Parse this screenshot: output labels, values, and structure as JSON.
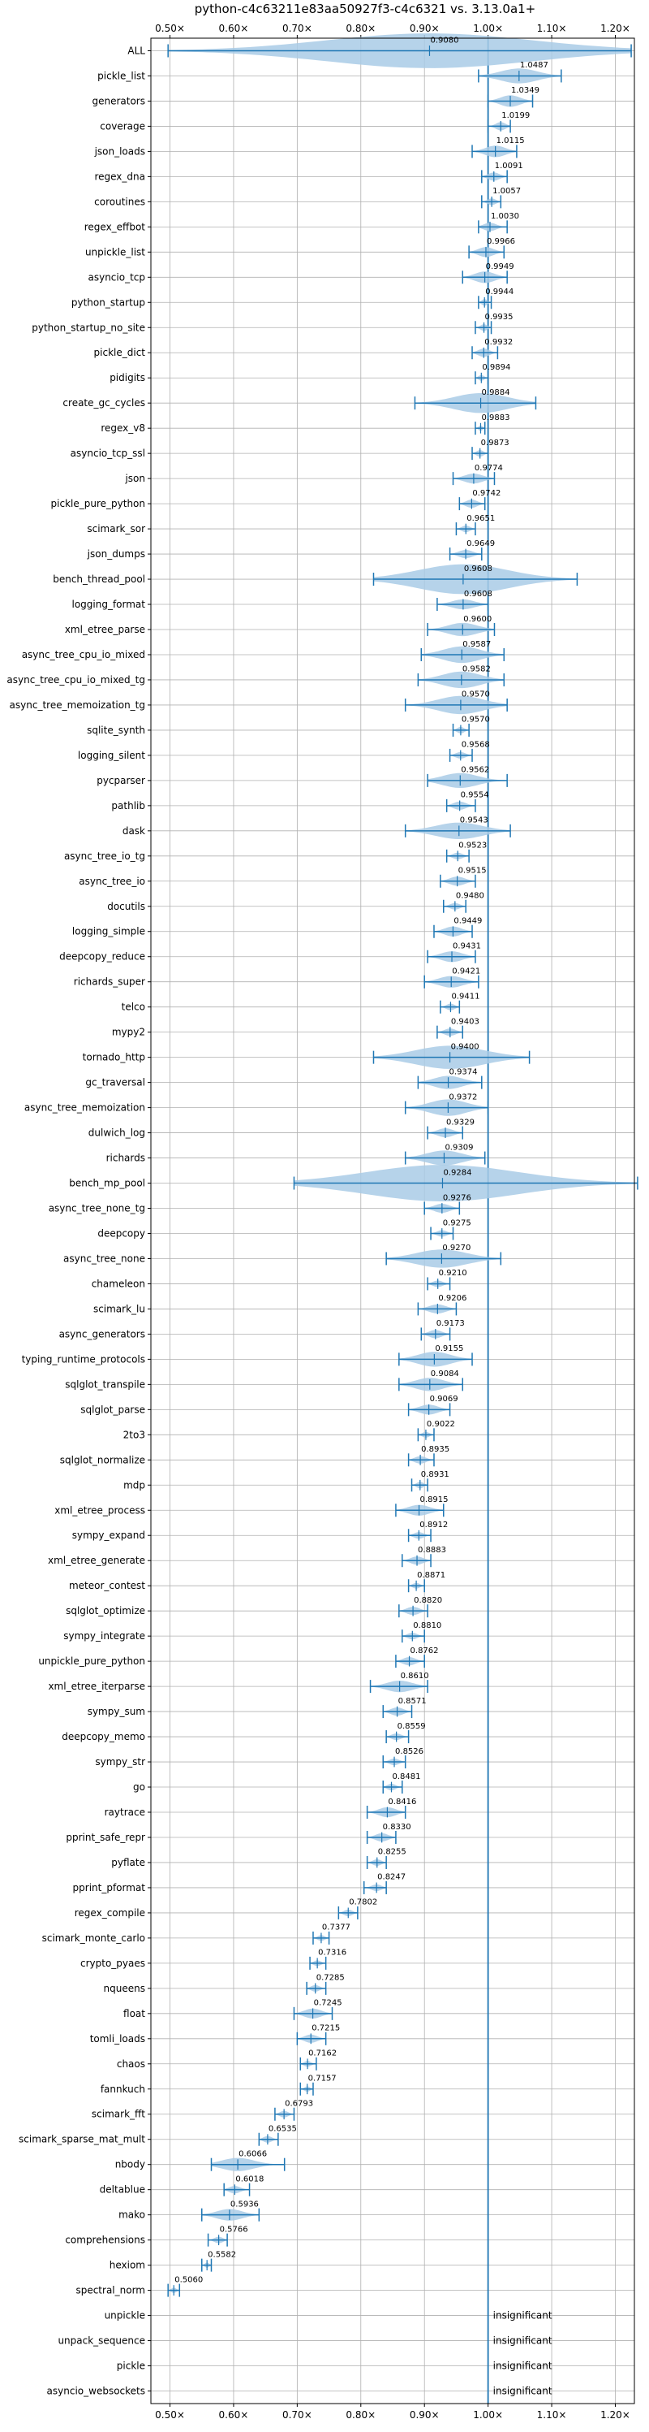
{
  "chart_data": {
    "type": "violin",
    "title": "python-c4c63211e83aa50927f3-c4c6321 vs. 3.13.0a1+",
    "xlim": [
      0.47,
      1.23
    ],
    "x_ticks": [
      0.5,
      0.6,
      0.7,
      0.8,
      0.9,
      1.0,
      1.1,
      1.2
    ],
    "x_tick_labels": [
      "0.50×",
      "0.60×",
      "0.70×",
      "0.80×",
      "0.90×",
      "1.00×",
      "1.10×",
      "1.20×"
    ],
    "reference_line": 1.0,
    "grid": true,
    "colors": {
      "accent": "#1f77b4",
      "violin_fill": "#a9cbe6",
      "grid": "#b0b0b0"
    },
    "insignificant_label": "insignificant",
    "benchmarks": [
      {
        "name": "ALL",
        "value": 0.908,
        "value_label": "0.9080",
        "min": 0.497,
        "max": 1.225,
        "width": 0.19
      },
      {
        "name": "pickle_list",
        "value": 1.0487,
        "value_label": "1.0487",
        "min": 0.985,
        "max": 1.115,
        "width": 0.07
      },
      {
        "name": "generators",
        "value": 1.0349,
        "value_label": "1.0349",
        "min": 1.0,
        "max": 1.07,
        "width": 0.05
      },
      {
        "name": "coverage",
        "value": 1.0199,
        "value_label": "1.0199",
        "min": 1.0,
        "max": 1.035,
        "width": 0.03
      },
      {
        "name": "json_loads",
        "value": 1.0115,
        "value_label": "1.0115",
        "min": 0.975,
        "max": 1.045,
        "width": 0.05
      },
      {
        "name": "regex_dna",
        "value": 1.0091,
        "value_label": "1.0091",
        "min": 0.99,
        "max": 1.03,
        "width": 0.03
      },
      {
        "name": "coroutines",
        "value": 1.0057,
        "value_label": "1.0057",
        "min": 0.99,
        "max": 1.02,
        "width": 0.02
      },
      {
        "name": "regex_effbot",
        "value": 1.003,
        "value_label": "1.0030",
        "min": 0.985,
        "max": 1.03,
        "width": 0.03
      },
      {
        "name": "unpickle_list",
        "value": 0.9966,
        "value_label": "0.9966",
        "min": 0.97,
        "max": 1.025,
        "width": 0.04
      },
      {
        "name": "asyncio_tcp",
        "value": 0.9949,
        "value_label": "0.9949",
        "min": 0.96,
        "max": 1.03,
        "width": 0.05
      },
      {
        "name": "python_startup",
        "value": 0.9944,
        "value_label": "0.9944",
        "min": 0.985,
        "max": 1.005,
        "width": 0.02
      },
      {
        "name": "python_startup_no_site",
        "value": 0.9935,
        "value_label": "0.9935",
        "min": 0.98,
        "max": 1.005,
        "width": 0.02
      },
      {
        "name": "pickle_dict",
        "value": 0.9932,
        "value_label": "0.9932",
        "min": 0.975,
        "max": 1.015,
        "width": 0.03
      },
      {
        "name": "pidigits",
        "value": 0.9894,
        "value_label": "0.9894",
        "min": 0.98,
        "max": 1.0,
        "width": 0.015
      },
      {
        "name": "create_gc_cycles",
        "value": 0.9884,
        "value_label": "0.9884",
        "min": 0.885,
        "max": 1.075,
        "width": 0.1
      },
      {
        "name": "regex_v8",
        "value": 0.9883,
        "value_label": "0.9883",
        "min": 0.98,
        "max": 0.995,
        "width": 0.012
      },
      {
        "name": "asyncio_tcp_ssl",
        "value": 0.9873,
        "value_label": "0.9873",
        "min": 0.975,
        "max": 1.0,
        "width": 0.02
      },
      {
        "name": "json",
        "value": 0.9774,
        "value_label": "0.9774",
        "min": 0.945,
        "max": 1.01,
        "width": 0.04
      },
      {
        "name": "pickle_pure_python",
        "value": 0.9742,
        "value_label": "0.9742",
        "min": 0.955,
        "max": 0.995,
        "width": 0.03
      },
      {
        "name": "scimark_sor",
        "value": 0.9651,
        "value_label": "0.9651",
        "min": 0.95,
        "max": 0.98,
        "width": 0.02
      },
      {
        "name": "json_dumps",
        "value": 0.9649,
        "value_label": "0.9649",
        "min": 0.94,
        "max": 0.99,
        "width": 0.03
      },
      {
        "name": "bench_thread_pool",
        "value": 0.9608,
        "value_label": "0.9608",
        "min": 0.82,
        "max": 1.14,
        "width": 0.16
      },
      {
        "name": "logging_format",
        "value": 0.9608,
        "value_label": "0.9608",
        "min": 0.92,
        "max": 1.0,
        "width": 0.04
      },
      {
        "name": "xml_etree_parse",
        "value": 0.96,
        "value_label": "0.9600",
        "min": 0.905,
        "max": 1.01,
        "width": 0.06
      },
      {
        "name": "async_tree_cpu_io_mixed",
        "value": 0.9587,
        "value_label": "0.9587",
        "min": 0.895,
        "max": 1.025,
        "width": 0.08
      },
      {
        "name": "async_tree_cpu_io_mixed_tg",
        "value": 0.9582,
        "value_label": "0.9582",
        "min": 0.89,
        "max": 1.025,
        "width": 0.08
      },
      {
        "name": "async_tree_memoization_tg",
        "value": 0.957,
        "value_label": "0.9570",
        "min": 0.87,
        "max": 1.03,
        "width": 0.09
      },
      {
        "name": "sqlite_synth",
        "value": 0.957,
        "value_label": "0.9570",
        "min": 0.945,
        "max": 0.97,
        "width": 0.02
      },
      {
        "name": "logging_silent",
        "value": 0.9568,
        "value_label": "0.9568",
        "min": 0.94,
        "max": 0.975,
        "width": 0.02
      },
      {
        "name": "pycparser",
        "value": 0.9562,
        "value_label": "0.9562",
        "min": 0.905,
        "max": 1.03,
        "width": 0.07
      },
      {
        "name": "pathlib",
        "value": 0.9554,
        "value_label": "0.9554",
        "min": 0.935,
        "max": 0.98,
        "width": 0.03
      },
      {
        "name": "dask",
        "value": 0.9543,
        "value_label": "0.9543",
        "min": 0.87,
        "max": 1.035,
        "width": 0.08
      },
      {
        "name": "async_tree_io_tg",
        "value": 0.9523,
        "value_label": "0.9523",
        "min": 0.935,
        "max": 0.97,
        "width": 0.02
      },
      {
        "name": "async_tree_io",
        "value": 0.9515,
        "value_label": "0.9515",
        "min": 0.925,
        "max": 0.98,
        "width": 0.035
      },
      {
        "name": "docutils",
        "value": 0.948,
        "value_label": "0.9480",
        "min": 0.93,
        "max": 0.965,
        "width": 0.02
      },
      {
        "name": "logging_simple",
        "value": 0.9449,
        "value_label": "0.9449",
        "min": 0.915,
        "max": 0.975,
        "width": 0.04
      },
      {
        "name": "deepcopy_reduce",
        "value": 0.9431,
        "value_label": "0.9431",
        "min": 0.905,
        "max": 0.98,
        "width": 0.045
      },
      {
        "name": "richards_super",
        "value": 0.9421,
        "value_label": "0.9421",
        "min": 0.9,
        "max": 0.985,
        "width": 0.05
      },
      {
        "name": "telco",
        "value": 0.9411,
        "value_label": "0.9411",
        "min": 0.925,
        "max": 0.955,
        "width": 0.02
      },
      {
        "name": "mypy2",
        "value": 0.9403,
        "value_label": "0.9403",
        "min": 0.92,
        "max": 0.96,
        "width": 0.025
      },
      {
        "name": "tornado_http",
        "value": 0.94,
        "value_label": "0.9400",
        "min": 0.82,
        "max": 1.065,
        "width": 0.12
      },
      {
        "name": "gc_traversal",
        "value": 0.9374,
        "value_label": "0.9374",
        "min": 0.89,
        "max": 0.99,
        "width": 0.06
      },
      {
        "name": "async_tree_memoization",
        "value": 0.9372,
        "value_label": "0.9372",
        "min": 0.87,
        "max": 1.0,
        "width": 0.08
      },
      {
        "name": "dulwich_log",
        "value": 0.9329,
        "value_label": "0.9329",
        "min": 0.905,
        "max": 0.96,
        "width": 0.035
      },
      {
        "name": "richards",
        "value": 0.9309,
        "value_label": "0.9309",
        "min": 0.87,
        "max": 0.995,
        "width": 0.07
      },
      {
        "name": "bench_mp_pool",
        "value": 0.9284,
        "value_label": "0.9284",
        "min": 0.695,
        "max": 1.235,
        "width": 0.22
      },
      {
        "name": "async_tree_none_tg",
        "value": 0.9276,
        "value_label": "0.9276",
        "min": 0.9,
        "max": 0.955,
        "width": 0.035
      },
      {
        "name": "deepcopy",
        "value": 0.9275,
        "value_label": "0.9275",
        "min": 0.91,
        "max": 0.945,
        "width": 0.02
      },
      {
        "name": "async_tree_none",
        "value": 0.927,
        "value_label": "0.9270",
        "min": 0.84,
        "max": 1.02,
        "width": 0.09
      },
      {
        "name": "chameleon",
        "value": 0.921,
        "value_label": "0.9210",
        "min": 0.905,
        "max": 0.94,
        "width": 0.02
      },
      {
        "name": "scimark_lu",
        "value": 0.9206,
        "value_label": "0.9206",
        "min": 0.89,
        "max": 0.95,
        "width": 0.035
      },
      {
        "name": "async_generators",
        "value": 0.9173,
        "value_label": "0.9173",
        "min": 0.895,
        "max": 0.94,
        "width": 0.03
      },
      {
        "name": "typing_runtime_protocols",
        "value": 0.9155,
        "value_label": "0.9155",
        "min": 0.86,
        "max": 0.975,
        "width": 0.07
      },
      {
        "name": "sqlglot_transpile",
        "value": 0.9084,
        "value_label": "0.9084",
        "min": 0.86,
        "max": 0.96,
        "width": 0.06
      },
      {
        "name": "sqlglot_parse",
        "value": 0.9069,
        "value_label": "0.9069",
        "min": 0.875,
        "max": 0.94,
        "width": 0.04
      },
      {
        "name": "2to3",
        "value": 0.9022,
        "value_label": "0.9022",
        "min": 0.89,
        "max": 0.915,
        "width": 0.015
      },
      {
        "name": "sqlglot_normalize",
        "value": 0.8935,
        "value_label": "0.8935",
        "min": 0.875,
        "max": 0.915,
        "width": 0.025
      },
      {
        "name": "mdp",
        "value": 0.8931,
        "value_label": "0.8931",
        "min": 0.88,
        "max": 0.905,
        "width": 0.02
      },
      {
        "name": "xml_etree_process",
        "value": 0.8915,
        "value_label": "0.8915",
        "min": 0.855,
        "max": 0.93,
        "width": 0.045
      },
      {
        "name": "sympy_expand",
        "value": 0.8912,
        "value_label": "0.8912",
        "min": 0.875,
        "max": 0.91,
        "width": 0.02
      },
      {
        "name": "xml_etree_generate",
        "value": 0.8883,
        "value_label": "0.8883",
        "min": 0.865,
        "max": 0.91,
        "width": 0.03
      },
      {
        "name": "meteor_contest",
        "value": 0.8871,
        "value_label": "0.8871",
        "min": 0.875,
        "max": 0.9,
        "width": 0.015
      },
      {
        "name": "sqlglot_optimize",
        "value": 0.882,
        "value_label": "0.8820",
        "min": 0.86,
        "max": 0.905,
        "width": 0.03
      },
      {
        "name": "sympy_integrate",
        "value": 0.881,
        "value_label": "0.8810",
        "min": 0.865,
        "max": 0.9,
        "width": 0.02
      },
      {
        "name": "unpickle_pure_python",
        "value": 0.8762,
        "value_label": "0.8762",
        "min": 0.855,
        "max": 0.9,
        "width": 0.03
      },
      {
        "name": "xml_etree_iterparse",
        "value": 0.861,
        "value_label": "0.8610",
        "min": 0.815,
        "max": 0.905,
        "width": 0.05
      },
      {
        "name": "sympy_sum",
        "value": 0.8571,
        "value_label": "0.8571",
        "min": 0.835,
        "max": 0.88,
        "width": 0.03
      },
      {
        "name": "deepcopy_memo",
        "value": 0.8559,
        "value_label": "0.8559",
        "min": 0.84,
        "max": 0.875,
        "width": 0.02
      },
      {
        "name": "sympy_str",
        "value": 0.8526,
        "value_label": "0.8526",
        "min": 0.835,
        "max": 0.87,
        "width": 0.02
      },
      {
        "name": "go",
        "value": 0.8481,
        "value_label": "0.8481",
        "min": 0.835,
        "max": 0.865,
        "width": 0.02
      },
      {
        "name": "raytrace",
        "value": 0.8416,
        "value_label": "0.8416",
        "min": 0.81,
        "max": 0.87,
        "width": 0.04
      },
      {
        "name": "pprint_safe_repr",
        "value": 0.833,
        "value_label": "0.8330",
        "min": 0.81,
        "max": 0.855,
        "width": 0.03
      },
      {
        "name": "pyflate",
        "value": 0.8255,
        "value_label": "0.8255",
        "min": 0.81,
        "max": 0.84,
        "width": 0.02
      },
      {
        "name": "pprint_pformat",
        "value": 0.8247,
        "value_label": "0.8247",
        "min": 0.805,
        "max": 0.84,
        "width": 0.02
      },
      {
        "name": "regex_compile",
        "value": 0.7802,
        "value_label": "0.7802",
        "min": 0.765,
        "max": 0.795,
        "width": 0.02
      },
      {
        "name": "scimark_monte_carlo",
        "value": 0.7377,
        "value_label": "0.7377",
        "min": 0.725,
        "max": 0.75,
        "width": 0.015
      },
      {
        "name": "crypto_pyaes",
        "value": 0.7316,
        "value_label": "0.7316",
        "min": 0.72,
        "max": 0.745,
        "width": 0.015
      },
      {
        "name": "nqueens",
        "value": 0.7285,
        "value_label": "0.7285",
        "min": 0.715,
        "max": 0.745,
        "width": 0.02
      },
      {
        "name": "float",
        "value": 0.7245,
        "value_label": "0.7245",
        "min": 0.695,
        "max": 0.755,
        "width": 0.04
      },
      {
        "name": "tomli_loads",
        "value": 0.7215,
        "value_label": "0.7215",
        "min": 0.7,
        "max": 0.745,
        "width": 0.03
      },
      {
        "name": "chaos",
        "value": 0.7162,
        "value_label": "0.7162",
        "min": 0.705,
        "max": 0.73,
        "width": 0.015
      },
      {
        "name": "fannkuch",
        "value": 0.7157,
        "value_label": "0.7157",
        "min": 0.705,
        "max": 0.725,
        "width": 0.012
      },
      {
        "name": "scimark_fft",
        "value": 0.6793,
        "value_label": "0.6793",
        "min": 0.665,
        "max": 0.695,
        "width": 0.02
      },
      {
        "name": "scimark_sparse_mat_mult",
        "value": 0.6535,
        "value_label": "0.6535",
        "min": 0.64,
        "max": 0.67,
        "width": 0.02
      },
      {
        "name": "nbody",
        "value": 0.6066,
        "value_label": "0.6066",
        "min": 0.565,
        "max": 0.68,
        "width": 0.06
      },
      {
        "name": "deltablue",
        "value": 0.6018,
        "value_label": "0.6018",
        "min": 0.585,
        "max": 0.625,
        "width": 0.025
      },
      {
        "name": "mako",
        "value": 0.5936,
        "value_label": "0.5936",
        "min": 0.55,
        "max": 0.64,
        "width": 0.05
      },
      {
        "name": "comprehensions",
        "value": 0.5766,
        "value_label": "0.5766",
        "min": 0.56,
        "max": 0.59,
        "width": 0.02
      },
      {
        "name": "hexiom",
        "value": 0.5582,
        "value_label": "0.5582",
        "min": 0.55,
        "max": 0.565,
        "width": 0.012
      },
      {
        "name": "spectral_norm",
        "value": 0.506,
        "value_label": "0.5060",
        "min": 0.497,
        "max": 0.515,
        "width": 0.012
      },
      {
        "name": "unpickle",
        "insignificant": true
      },
      {
        "name": "unpack_sequence",
        "insignificant": true
      },
      {
        "name": "pickle",
        "insignificant": true
      },
      {
        "name": "asyncio_websockets",
        "insignificant": true
      }
    ]
  }
}
